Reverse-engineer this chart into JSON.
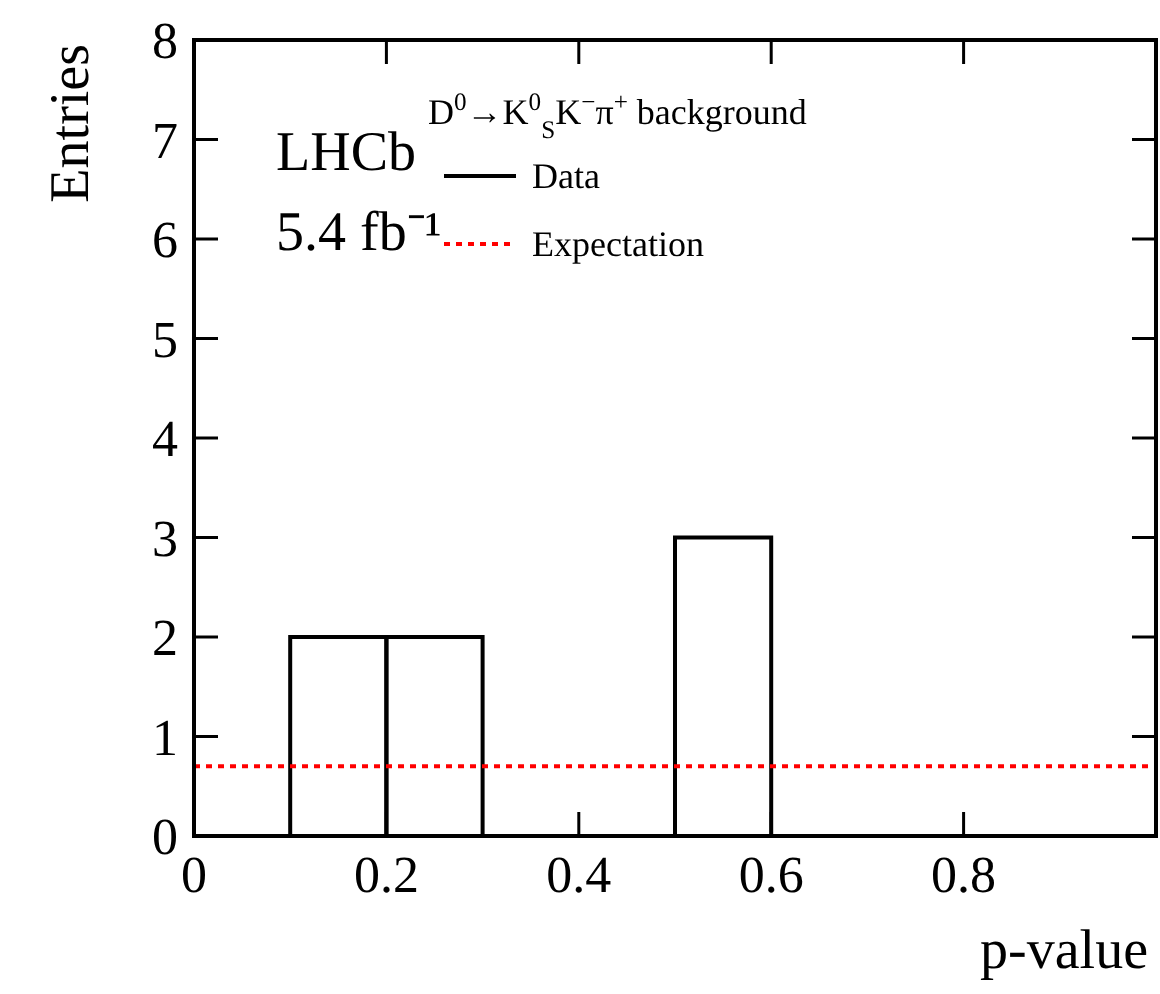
{
  "chart_data": {
    "type": "histogram",
    "xlabel": "p-value",
    "ylabel": "Entries",
    "legend_title": "D$^{0}$→K$^{0}$$_{S}$K$^{−}$π$^{+}$ background",
    "annotations": [
      "LHCb",
      "5.4 fb⁻¹"
    ],
    "bins": [
      0,
      0.1,
      0.2,
      0.3,
      0.4,
      0.5,
      0.6,
      0.7,
      0.8,
      0.9,
      1.0
    ],
    "series": [
      {
        "name": "Data",
        "color": "#000000",
        "values": [
          0,
          2,
          2,
          0,
          0,
          3,
          0,
          0,
          0,
          0
        ]
      }
    ],
    "ref_lines": [
      {
        "axis": "y",
        "value": 0.7,
        "label": "Expectation",
        "color": "#ff0000",
        "line_style": "dotted"
      }
    ],
    "xlim": [
      0,
      1
    ],
    "xticks": [
      0,
      0.2,
      0.4,
      0.6,
      0.8
    ],
    "ylim": [
      0,
      8
    ],
    "yticks": [
      0,
      1,
      2,
      3,
      4,
      5,
      6,
      7,
      8
    ],
    "legend": "top",
    "grid": false
  }
}
